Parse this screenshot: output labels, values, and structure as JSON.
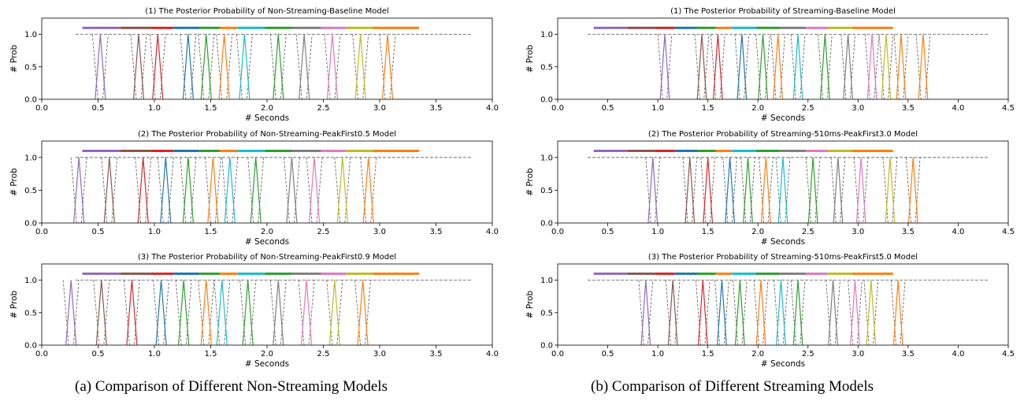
{
  "chart_data": [
    {
      "type": "line",
      "title": "(1) The Posterior Probability of Non-Streaming-Baseline Model",
      "xlabel": "# Seconds",
      "ylabel": "# Prob",
      "xlim": [
        0,
        4.0
      ],
      "ylim": [
        0,
        1.25
      ],
      "xticks": [
        "0.0",
        "0.5",
        "1.0",
        "1.5",
        "2.0",
        "2.5",
        "3.0",
        "3.5",
        "4.0"
      ],
      "yticks": [
        "0.0",
        "0.5",
        "1.0"
      ],
      "blank_end": 3.82,
      "peaks": [
        0.52,
        0.86,
        1.03,
        1.3,
        1.46,
        1.62,
        1.8,
        2.1,
        2.33,
        2.58,
        2.83,
        3.07
      ]
    },
    {
      "type": "line",
      "title": "(2) The Posterior Probability of Non-Streaming-PeakFirst0.5 Model",
      "xlabel": "# Seconds",
      "ylabel": "# Prob",
      "xlim": [
        0,
        4.0
      ],
      "ylim": [
        0,
        1.25
      ],
      "xticks": [
        "0.0",
        "0.5",
        "1.0",
        "1.5",
        "2.0",
        "2.5",
        "3.0",
        "3.5",
        "4.0"
      ],
      "yticks": [
        "0.0",
        "0.5",
        "1.0"
      ],
      "blank_end": 3.82,
      "peaks": [
        0.33,
        0.6,
        0.9,
        1.1,
        1.3,
        1.52,
        1.67,
        1.9,
        2.22,
        2.42,
        2.67,
        2.9
      ]
    },
    {
      "type": "line",
      "title": "(3) The Posterior Probability of Non-Streaming-PeakFirst0.9 Model",
      "xlabel": "# Seconds",
      "ylabel": "# Prob",
      "xlim": [
        0,
        4.0
      ],
      "ylim": [
        0,
        1.25
      ],
      "xticks": [
        "0.0",
        "0.5",
        "1.0",
        "1.5",
        "2.0",
        "2.5",
        "3.0",
        "3.5",
        "4.0"
      ],
      "yticks": [
        "0.0",
        "0.5",
        "1.0"
      ],
      "blank_end": 3.82,
      "peaks": [
        0.26,
        0.53,
        0.8,
        1.06,
        1.26,
        1.46,
        1.6,
        1.83,
        2.1,
        2.35,
        2.6,
        2.85
      ]
    },
    {
      "type": "line",
      "title": "(1) The Posterior Probability of Streaming-Baseline Model",
      "xlabel": "# Seconds",
      "ylabel": "# Prob",
      "xlim": [
        0,
        4.5
      ],
      "ylim": [
        0,
        1.25
      ],
      "xticks": [
        "0.0",
        "0.5",
        "1.0",
        "1.5",
        "2.0",
        "2.5",
        "3.0",
        "3.5",
        "4.0",
        "4.5"
      ],
      "yticks": [
        "0.0",
        "0.5",
        "1.0"
      ],
      "blank_end": 4.3,
      "peaks": [
        1.07,
        1.44,
        1.6,
        1.84,
        2.05,
        2.2,
        2.4,
        2.67,
        2.9,
        3.14,
        3.28,
        3.43,
        3.65
      ]
    },
    {
      "type": "line",
      "title": "(2) The Posterior Probability of Streaming-510ms-PeakFirst3.0 Model",
      "xlabel": "# Seconds",
      "ylabel": "# Prob",
      "xlim": [
        0,
        4.5
      ],
      "ylim": [
        0,
        1.25
      ],
      "xticks": [
        "0.0",
        "0.5",
        "1.0",
        "1.5",
        "2.0",
        "2.5",
        "3.0",
        "3.5",
        "4.0",
        "4.5"
      ],
      "yticks": [
        "0.0",
        "0.5",
        "1.0"
      ],
      "blank_end": 4.3,
      "peaks": [
        0.95,
        1.32,
        1.5,
        1.72,
        1.9,
        2.08,
        2.25,
        2.55,
        2.8,
        3.03,
        3.32,
        3.55
      ]
    },
    {
      "type": "line",
      "title": "(3) The Posterior Probability of Streaming-510ms-PeakFirst5.0 Model",
      "xlabel": "# Seconds",
      "ylabel": "# Prob",
      "xlim": [
        0,
        4.5
      ],
      "ylim": [
        0,
        1.25
      ],
      "xticks": [
        "0.0",
        "0.5",
        "1.0",
        "1.5",
        "2.0",
        "2.5",
        "3.0",
        "3.5",
        "4.0",
        "4.5"
      ],
      "yticks": [
        "0.0",
        "0.5",
        "1.0"
      ],
      "blank_end": 4.3,
      "peaks": [
        0.88,
        1.15,
        1.45,
        1.64,
        1.82,
        2.03,
        2.23,
        2.4,
        2.75,
        2.97,
        3.13,
        3.4
      ]
    }
  ],
  "label_bar": {
    "y": 1.1,
    "segments": [
      {
        "start": 0.36,
        "end": 0.7,
        "color": "#9467bd"
      },
      {
        "start": 0.7,
        "end": 0.97,
        "color": "#8c564b"
      },
      {
        "start": 0.97,
        "end": 1.17,
        "color": "#d62728"
      },
      {
        "start": 1.17,
        "end": 1.4,
        "color": "#1f77b4"
      },
      {
        "start": 1.4,
        "end": 1.58,
        "color": "#2ca02c"
      },
      {
        "start": 1.58,
        "end": 1.74,
        "color": "#ff7f0e"
      },
      {
        "start": 1.74,
        "end": 1.98,
        "color": "#17becf"
      },
      {
        "start": 1.98,
        "end": 2.22,
        "color": "#2ca02c"
      },
      {
        "start": 2.22,
        "end": 2.48,
        "color": "#7f7f7f"
      },
      {
        "start": 2.48,
        "end": 2.7,
        "color": "#e377c2"
      },
      {
        "start": 2.7,
        "end": 2.94,
        "color": "#bcbd22"
      },
      {
        "start": 2.94,
        "end": 3.35,
        "color": "#ff7f0e"
      }
    ]
  },
  "peak_colors": [
    "#9467bd",
    "#8c564b",
    "#d62728",
    "#1f77b4",
    "#2ca02c",
    "#ff7f0e",
    "#17becf",
    "#2ca02c",
    "#7f7f7f",
    "#e377c2",
    "#bcbd22",
    "#ff7f0e",
    "#ff7f0e"
  ],
  "captions": {
    "a": "(a)  Comparison of Different Non-Streaming Models",
    "b": "(b)  Comparison of Different Streaming Models"
  }
}
